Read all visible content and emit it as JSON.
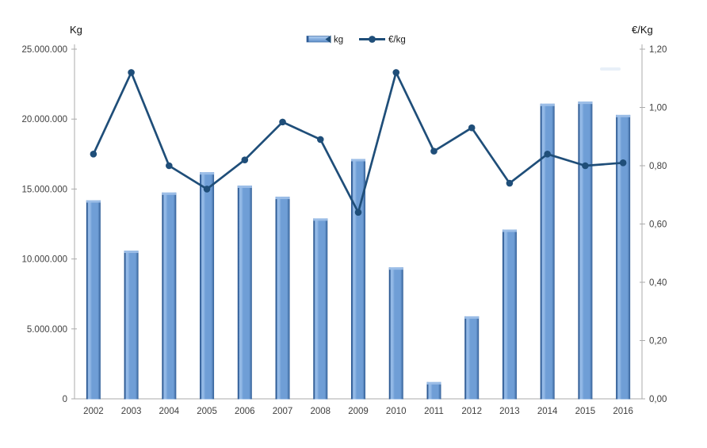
{
  "chart_data": {
    "type": "combo-bar-line",
    "title": "",
    "categories": [
      "2002",
      "2003",
      "2004",
      "2005",
      "2006",
      "2007",
      "2008",
      "2009",
      "2010",
      "2011",
      "2012",
      "2013",
      "2014",
      "2015",
      "2016"
    ],
    "series": [
      {
        "name": "kg",
        "type": "bar",
        "axis": "left",
        "color": "#6b9bd3",
        "values": [
          14200000,
          10600000,
          14750000,
          16200000,
          15250000,
          14450000,
          12900000,
          17150000,
          9400000,
          1200000,
          5900000,
          12100000,
          21100000,
          21250000,
          20300000
        ]
      },
      {
        "name": "€/kg",
        "type": "line",
        "axis": "right",
        "color": "#1f4e79",
        "values": [
          0.84,
          1.12,
          0.8,
          0.72,
          0.82,
          0.95,
          0.89,
          0.64,
          1.12,
          0.85,
          0.93,
          0.74,
          0.84,
          0.8,
          0.81
        ]
      }
    ],
    "left_axis": {
      "title": "Kg",
      "min": 0,
      "max": 25000000,
      "step": 5000000,
      "tick_labels": [
        "25.000.000",
        "20.000.000",
        "15.000.000",
        "10.000.000",
        "5.000.000",
        "0"
      ]
    },
    "right_axis": {
      "title": "€/Kg",
      "min": 0,
      "max": 1.2,
      "step": 0.2,
      "tick_labels": [
        "1,20",
        "1,00",
        "0,80",
        "0,60",
        "0,40",
        "0,20",
        "0,00"
      ]
    },
    "legend": {
      "position": "top-center",
      "entries": [
        {
          "label": "kg",
          "marker": "bar"
        },
        {
          "label": "€/kg",
          "marker": "line-dot"
        }
      ]
    },
    "grid": false,
    "plot_background": "#ffffff"
  },
  "colors": {
    "bar_body": "#6f9ed6",
    "bar_highlight": "#93b9e6",
    "bar_edge": "#2d5a94",
    "bar_cap": "#9dbfe8",
    "line": "#1f4e79",
    "axis_line": "#ababab",
    "tick_text": "#3f3f3f"
  }
}
